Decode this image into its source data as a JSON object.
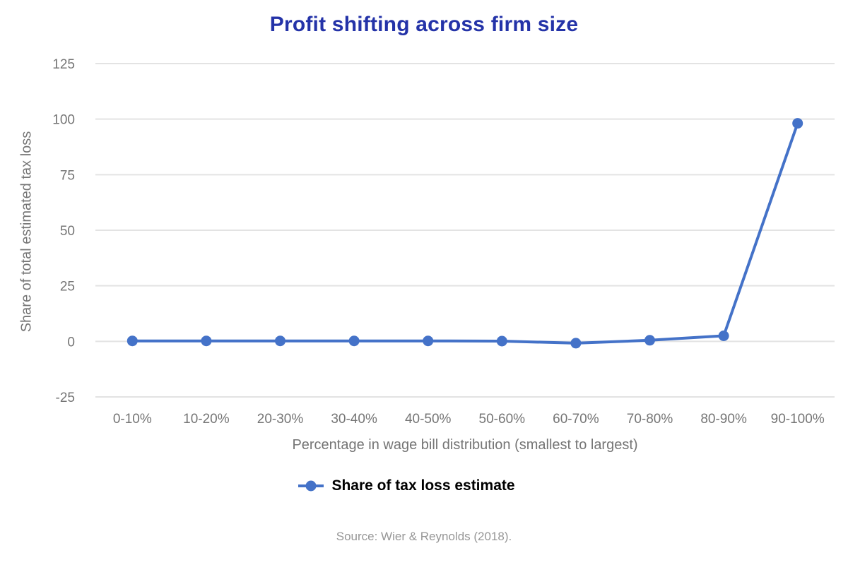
{
  "title": "Profit shifting across firm size",
  "source": "Source: Wier & Reynolds (2018).",
  "legend": {
    "label": "Share of tax loss estimate"
  },
  "colors": {
    "title": "#2433A8",
    "line": "#4472C8",
    "marker": "#4472C8",
    "gridline": "#E3E3E3",
    "axis_text": "#757575",
    "legend_text": "#000000",
    "source_text": "#969696"
  },
  "chart_data": {
    "type": "line",
    "title": "Profit shifting across firm size",
    "categories": [
      "0-10%",
      "10-20%",
      "20-30%",
      "30-40%",
      "40-50%",
      "50-60%",
      "60-70%",
      "70-80%",
      "80-90%",
      "90-100%"
    ],
    "series": [
      {
        "name": "Share of tax loss estimate",
        "values": [
          0.2,
          0.2,
          0.2,
          0.2,
          0.2,
          0.1,
          -0.8,
          0.5,
          2.5,
          98.1
        ]
      }
    ],
    "xlabel": "Percentage in wage bill distribution (smallest to largest)",
    "ylabel": "Share of total estimated tax loss",
    "ylim": [
      -25,
      125
    ],
    "yticks": [
      125,
      100,
      75,
      50,
      25,
      0,
      -25
    ],
    "grid": true,
    "legend_position": "bottom",
    "marker_style": "circle",
    "line_width": 4,
    "marker_radius": 7.5
  }
}
